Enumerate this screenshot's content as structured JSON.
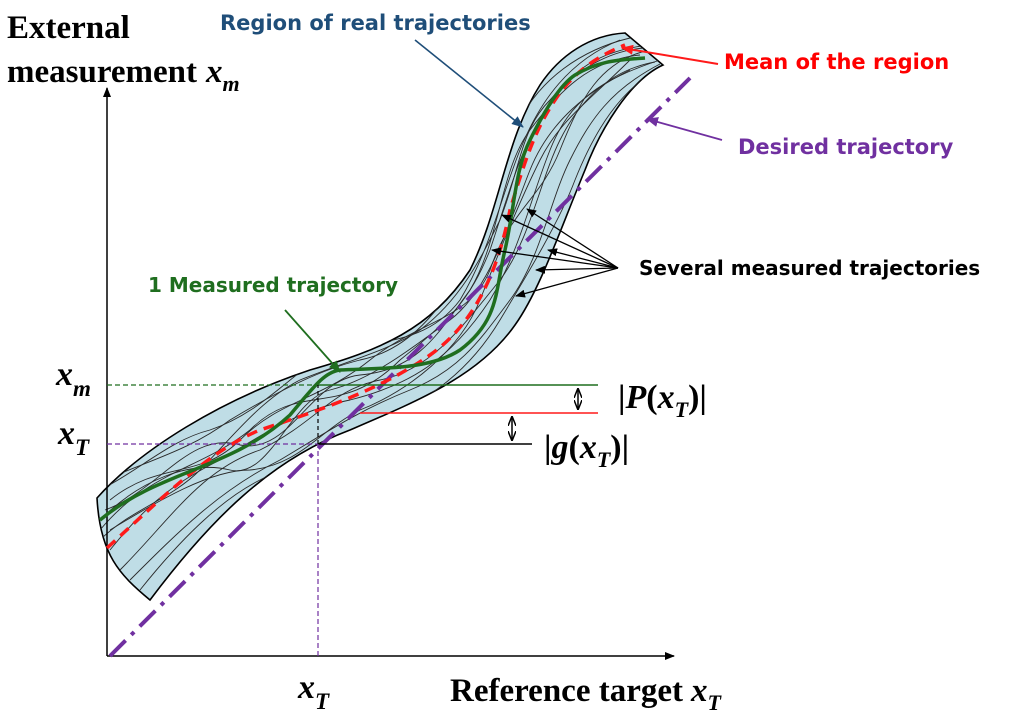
{
  "title": {
    "line1": "External",
    "line2": "measurement",
    "var_main": "x",
    "var_sub": "m"
  },
  "x_axis": {
    "label": "Reference target",
    "var_main": "x",
    "var_sub": "T"
  },
  "ticks": {
    "xm": {
      "main": "x",
      "sub": "m"
    },
    "xt_left": {
      "main": "x",
      "sub": "T"
    },
    "xt_bottom": {
      "main": "x",
      "sub": "T"
    }
  },
  "labels": {
    "region": "Region of real trajectories",
    "mean": "Mean of the region",
    "desired": "Desired trajectory",
    "several": "Several measured trajectories",
    "one": "1 Measured trajectory"
  },
  "formulas": {
    "p": {
      "open": "|",
      "func": "P",
      "paren_open": "(",
      "var": "x",
      "sub": "T",
      "paren_close": ")",
      "close": "|"
    },
    "g": {
      "open": "|",
      "func": "g",
      "paren_open": "(",
      "var": "x",
      "sub": "T",
      "paren_close": ")",
      "close": "|"
    }
  },
  "colors": {
    "region_fill": "#bfdde6",
    "mean": "#ff1a1a",
    "desired": "#7030a0",
    "measured": "#1f6e1f",
    "region_label": "#1f4e79",
    "desired_label": "#7030a0",
    "mean_label": "#ff0000",
    "measured_label": "#1f6e1f"
  }
}
